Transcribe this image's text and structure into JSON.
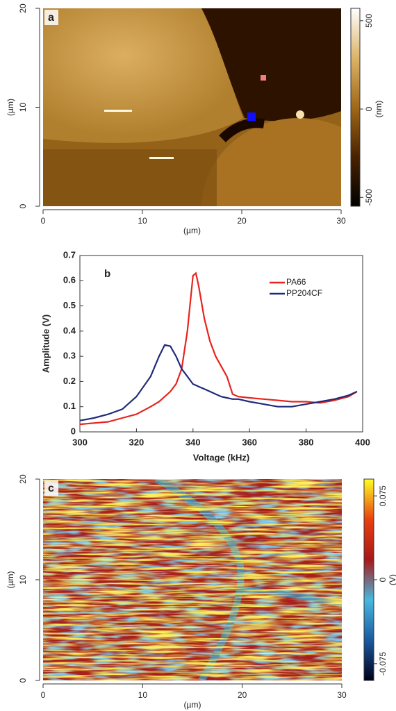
{
  "chart_data": [
    {
      "type": "heatmap",
      "panel_label": "a",
      "xlabel": "(µm)",
      "ylabel": "(µm)",
      "xlim": [
        0,
        30
      ],
      "xticks": [
        0,
        10,
        20,
        30
      ],
      "ylim": [
        0,
        20
      ],
      "yticks": [
        0,
        10,
        20
      ],
      "colorbar": {
        "label": "(nm)",
        "lim": [
          -550,
          570
        ],
        "ticks": [
          -500,
          0,
          500
        ],
        "colormap": [
          "#000000",
          "#4a2200",
          "#a06818",
          "#dcb468",
          "#ffffff"
        ]
      }
    },
    {
      "type": "line",
      "panel_label": "b",
      "xlabel": "Voltage (kHz)",
      "ylabel": "Amplitude (V)",
      "xlim": [
        300,
        400
      ],
      "xticks": [
        300,
        320,
        340,
        360,
        380,
        400
      ],
      "ylim": [
        0,
        0.7
      ],
      "yticks": [
        0,
        0.1,
        0.2,
        0.3,
        0.4,
        0.5,
        0.6,
        0.7
      ],
      "legend": "upper right",
      "x": [
        300,
        305,
        310,
        315,
        320,
        325,
        328,
        330,
        332,
        334,
        336,
        338,
        340,
        341,
        342,
        344,
        346,
        348,
        350,
        352,
        354,
        356,
        360,
        365,
        370,
        375,
        380,
        385,
        390,
        395,
        398
      ],
      "series": [
        {
          "name": "PA66",
          "color": "#e8231e",
          "values": [
            0.03,
            0.035,
            0.04,
            0.055,
            0.07,
            0.1,
            0.12,
            0.14,
            0.16,
            0.19,
            0.25,
            0.4,
            0.62,
            0.63,
            0.58,
            0.45,
            0.36,
            0.3,
            0.26,
            0.22,
            0.15,
            0.14,
            0.135,
            0.13,
            0.125,
            0.12,
            0.12,
            0.115,
            0.125,
            0.14,
            0.16
          ]
        },
        {
          "name": "PP204CF",
          "color": "#1f2a7a",
          "values": [
            0.045,
            0.055,
            0.07,
            0.09,
            0.14,
            0.22,
            0.3,
            0.345,
            0.34,
            0.3,
            0.25,
            0.22,
            0.19,
            0.185,
            0.18,
            0.17,
            0.16,
            0.15,
            0.14,
            0.135,
            0.13,
            0.13,
            0.12,
            0.11,
            0.1,
            0.1,
            0.11,
            0.12,
            0.13,
            0.145,
            0.16
          ]
        }
      ]
    },
    {
      "type": "heatmap",
      "panel_label": "c",
      "xlabel": "(µm)",
      "ylabel": "(µm)",
      "xlim": [
        0,
        30
      ],
      "xticks": [
        0,
        10,
        20,
        30
      ],
      "ylim": [
        0,
        20
      ],
      "yticks": [
        0,
        10,
        20
      ],
      "colorbar": {
        "label": "(V)",
        "lim": [
          -0.09,
          0.09
        ],
        "ticks": [
          -0.075,
          0,
          0.075
        ],
        "colormap": [
          "#000018",
          "#1a5aa0",
          "#48b8e0",
          "#a81818",
          "#e84010",
          "#ffff20"
        ]
      }
    }
  ]
}
